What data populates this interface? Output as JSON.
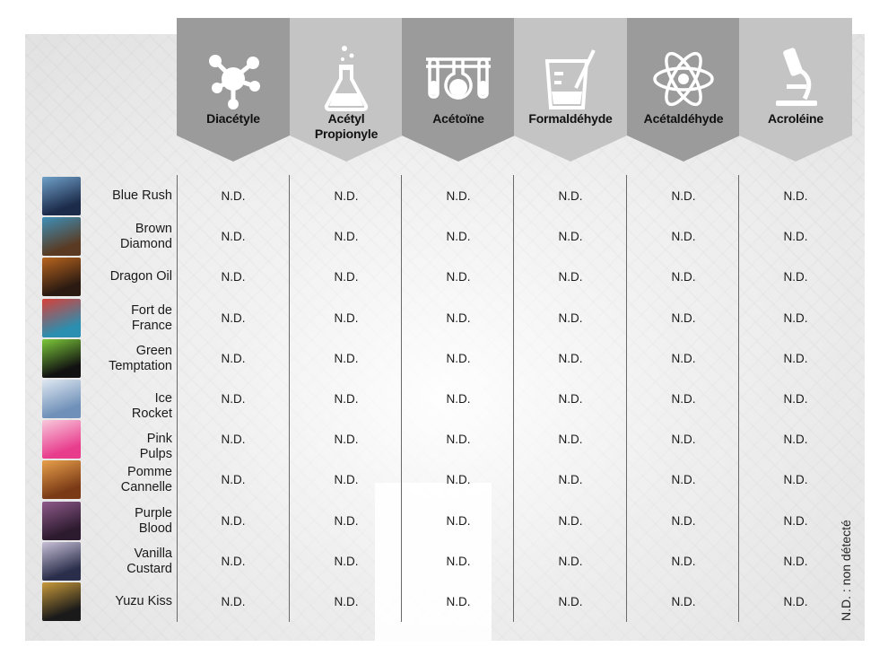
{
  "columns": [
    {
      "label": "Diacétyle",
      "icon": "molecule-icon",
      "bg": "#9b9b9b"
    },
    {
      "label": "Acétyl Propionyle",
      "icon": "flask-icon",
      "bg": "#c4c4c4"
    },
    {
      "label": "Acétoïne",
      "icon": "test-tubes-icon",
      "bg": "#9b9b9b"
    },
    {
      "label": "Formaldéhyde",
      "icon": "beaker-icon",
      "bg": "#c4c4c4"
    },
    {
      "label": "Acétaldéhyde",
      "icon": "atom-icon",
      "bg": "#9b9b9b"
    },
    {
      "label": "Acroléine",
      "icon": "microscope-icon",
      "bg": "#c4c4c4"
    }
  ],
  "rows": [
    {
      "name": "Blue Rush",
      "values": [
        "N.D.",
        "N.D.",
        "N.D.",
        "N.D.",
        "N.D.",
        "N.D."
      ],
      "thumb_colors": [
        "#1c2b4a",
        "#6fa0c8"
      ]
    },
    {
      "name": "Brown Diamond",
      "values": [
        "N.D.",
        "N.D.",
        "N.D.",
        "N.D.",
        "N.D.",
        "N.D."
      ],
      "thumb_colors": [
        "#5a3a22",
        "#3d8fb8"
      ]
    },
    {
      "name": "Dragon Oil",
      "values": [
        "N.D.",
        "N.D.",
        "N.D.",
        "N.D.",
        "N.D.",
        "N.D."
      ],
      "thumb_colors": [
        "#2a1a12",
        "#b8641e"
      ]
    },
    {
      "name": "Fort de France",
      "values": [
        "N.D.",
        "N.D.",
        "N.D.",
        "N.D.",
        "N.D.",
        "N.D."
      ],
      "thumb_colors": [
        "#2a8fb0",
        "#d8403a"
      ]
    },
    {
      "name": "Green Temptation",
      "values": [
        "N.D.",
        "N.D.",
        "N.D.",
        "N.D.",
        "N.D.",
        "N.D."
      ],
      "thumb_colors": [
        "#111111",
        "#7cc83a"
      ]
    },
    {
      "name": "Ice Rocket",
      "values": [
        "N.D.",
        "N.D.",
        "N.D.",
        "N.D.",
        "N.D.",
        "N.D."
      ],
      "thumb_colors": [
        "#6f90b8",
        "#dfe8f2"
      ]
    },
    {
      "name": "Pink Pulps",
      "values": [
        "N.D.",
        "N.D.",
        "N.D.",
        "N.D.",
        "N.D.",
        "N.D."
      ],
      "thumb_colors": [
        "#e83c8c",
        "#f8c8dc"
      ]
    },
    {
      "name": "Pomme Cannelle",
      "values": [
        "N.D.",
        "N.D.",
        "N.D.",
        "N.D.",
        "N.D.",
        "N.D."
      ],
      "thumb_colors": [
        "#7a3a16",
        "#e8a04a"
      ]
    },
    {
      "name": "Purple Blood",
      "values": [
        "N.D.",
        "N.D.",
        "N.D.",
        "N.D.",
        "N.D.",
        "N.D."
      ],
      "thumb_colors": [
        "#2c1a2e",
        "#8e5a8a"
      ]
    },
    {
      "name": "Vanilla Custard",
      "values": [
        "N.D.",
        "N.D.",
        "N.D.",
        "N.D.",
        "N.D.",
        "N.D."
      ],
      "thumb_colors": [
        "#2a2e4a",
        "#c8c0d8"
      ]
    },
    {
      "name": "Yuzu Kiss",
      "values": [
        "N.D.",
        "N.D.",
        "N.D.",
        "N.D.",
        "N.D.",
        "N.D."
      ],
      "thumb_colors": [
        "#1a1a1a",
        "#c89a3a"
      ]
    }
  ],
  "legend_note": "N.D. : non détecté"
}
